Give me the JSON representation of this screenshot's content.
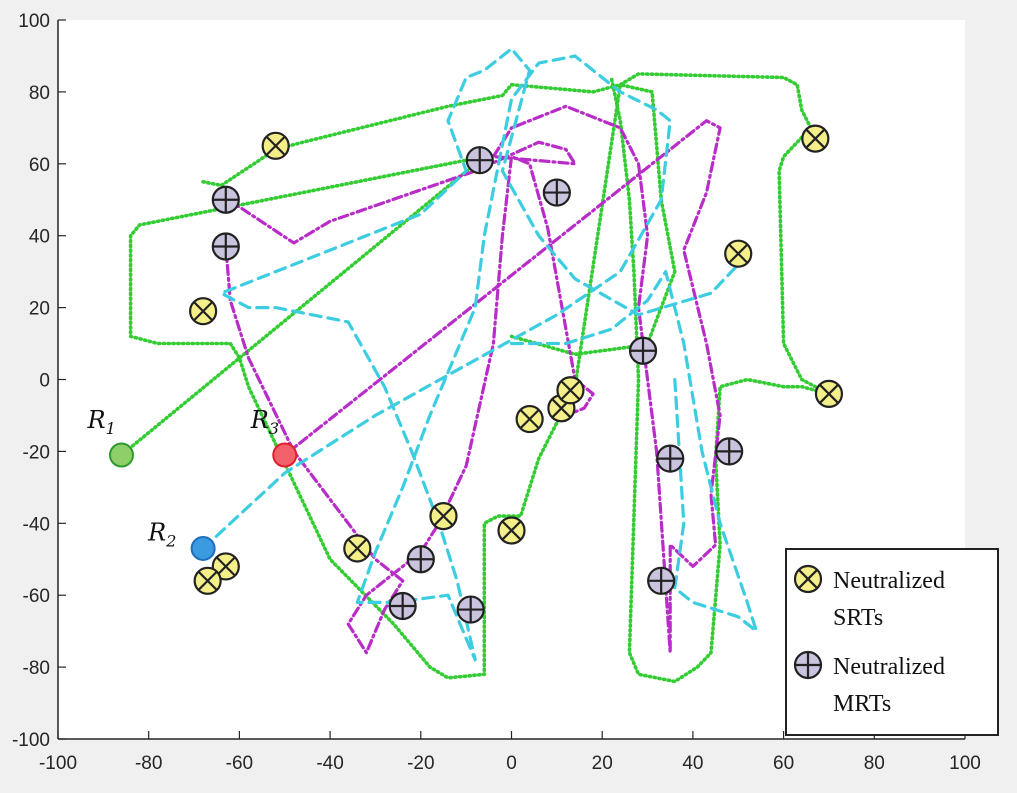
{
  "chart_data": {
    "type": "line",
    "title": "",
    "xlabel": "",
    "ylabel": "",
    "xlim": [
      -100,
      100
    ],
    "ylim": [
      -100,
      100
    ],
    "xticks": [
      -100,
      -80,
      -60,
      -40,
      -20,
      0,
      20,
      40,
      60,
      80,
      100
    ],
    "yticks": [
      -100,
      -80,
      -60,
      -40,
      -20,
      0,
      20,
      40,
      60,
      80,
      100
    ],
    "grid": false,
    "legend_placement": "bottom-right",
    "colors": {
      "green": "#33cc33",
      "magenta": "#b82cc8",
      "cyan": "#3ccde0",
      "srt_fill": "#f5ef8a",
      "mrt_fill": "#c9c3dd",
      "r1": "#8fcf6a",
      "r2": "#3a9be0",
      "r3": "#f2606a"
    },
    "robots": [
      {
        "label": "R",
        "sub": "1",
        "x": -86,
        "y": -21,
        "color": "r1"
      },
      {
        "label": "R",
        "sub": "2",
        "x": -68,
        "y": -47,
        "color": "r2"
      },
      {
        "label": "R",
        "sub": "3",
        "x": -50,
        "y": -21,
        "color": "r3"
      }
    ],
    "series": [
      {
        "color": "green",
        "style": "dotted",
        "points": [
          [
            -86,
            -21
          ],
          [
            -6,
            62
          ],
          [
            -82,
            43
          ],
          [
            -84,
            40
          ],
          [
            -84,
            12
          ],
          [
            -78,
            10
          ],
          [
            -62,
            10
          ],
          [
            -60,
            6
          ],
          [
            -58,
            -2
          ],
          [
            -40,
            -50
          ],
          [
            -26,
            -68
          ],
          [
            -18,
            -80
          ],
          [
            -14,
            -83
          ],
          [
            -6,
            -82
          ],
          [
            -6,
            -40
          ],
          [
            -3,
            -38
          ],
          [
            2,
            -38
          ],
          [
            6,
            -22
          ],
          [
            14,
            -2
          ],
          [
            24,
            82
          ],
          [
            31,
            80
          ],
          [
            33,
            50
          ],
          [
            36,
            30
          ],
          [
            30,
            10
          ],
          [
            26,
            9
          ],
          [
            14,
            7
          ],
          [
            0,
            12
          ]
        ]
      },
      {
        "color": "green",
        "style": "dotted",
        "points": [
          [
            -68,
            55
          ],
          [
            -64,
            54
          ],
          [
            -52,
            64
          ],
          [
            -46,
            66
          ],
          [
            -14,
            76
          ],
          [
            -2,
            79
          ],
          [
            0,
            82
          ],
          [
            18,
            80
          ],
          [
            24,
            82
          ],
          [
            28,
            85
          ],
          [
            60,
            84
          ],
          [
            63,
            82
          ],
          [
            64,
            75
          ],
          [
            66,
            70
          ],
          [
            60,
            62
          ],
          [
            59,
            58
          ],
          [
            60,
            10
          ],
          [
            64,
            0
          ],
          [
            70,
            -4
          ],
          [
            64,
            -2
          ],
          [
            60,
            -2
          ],
          [
            52,
            0
          ],
          [
            46,
            -2
          ],
          [
            45,
            -22
          ],
          [
            46,
            -46
          ],
          [
            44,
            -76
          ],
          [
            41,
            -80
          ],
          [
            36,
            -84
          ],
          [
            28,
            -82
          ],
          [
            26,
            -76
          ],
          [
            28,
            0
          ],
          [
            27,
            30
          ],
          [
            26,
            50
          ],
          [
            24,
            72
          ],
          [
            22,
            84
          ]
        ]
      },
      {
        "color": "magenta",
        "style": "dashdot",
        "points": [
          [
            -50,
            -21
          ],
          [
            43,
            72
          ],
          [
            46,
            70
          ],
          [
            43,
            52
          ],
          [
            38,
            36
          ],
          [
            43,
            10
          ],
          [
            46,
            -10
          ],
          [
            44,
            -32
          ],
          [
            45,
            -46
          ],
          [
            40,
            -52
          ],
          [
            35,
            -46
          ],
          [
            35,
            -76
          ],
          [
            32,
            -20
          ],
          [
            28,
            20
          ],
          [
            30,
            40
          ],
          [
            28,
            60
          ],
          [
            24,
            70
          ],
          [
            12,
            76
          ],
          [
            0,
            70
          ],
          [
            -4,
            62
          ],
          [
            14,
            60
          ],
          [
            12,
            64
          ],
          [
            6,
            66
          ],
          [
            -8,
            58
          ],
          [
            -40,
            44
          ],
          [
            -48,
            38
          ],
          [
            -60,
            48
          ],
          [
            -64,
            50
          ]
        ]
      },
      {
        "color": "magenta",
        "style": "dashdot",
        "points": [
          [
            -63,
            37
          ],
          [
            -62,
            22
          ],
          [
            -58,
            6
          ],
          [
            -48,
            -20
          ],
          [
            -30,
            -50
          ],
          [
            -24,
            -56
          ],
          [
            -28,
            -64
          ],
          [
            -32,
            -76
          ],
          [
            -36,
            -68
          ],
          [
            -32,
            -60
          ],
          [
            -26,
            -54
          ],
          [
            -20,
            -48
          ],
          [
            -16,
            -40
          ],
          [
            -10,
            -24
          ],
          [
            -4,
            10
          ],
          [
            -2,
            40
          ],
          [
            0,
            62
          ],
          [
            4,
            60
          ],
          [
            8,
            42
          ],
          [
            14,
            0
          ],
          [
            18,
            -4
          ],
          [
            16,
            -8
          ],
          [
            12,
            -10
          ]
        ]
      },
      {
        "color": "cyan",
        "style": "dashed",
        "points": [
          [
            -68,
            -47
          ],
          [
            -50,
            -26
          ],
          [
            -30,
            -10
          ],
          [
            10,
            18
          ],
          [
            24,
            30
          ],
          [
            33,
            50
          ],
          [
            35,
            72
          ],
          [
            32,
            75
          ],
          [
            24,
            80
          ],
          [
            14,
            90
          ],
          [
            6,
            88
          ],
          [
            0,
            78
          ],
          [
            -6,
            40
          ],
          [
            -8,
            20
          ],
          [
            -18,
            -10
          ],
          [
            -24,
            -30
          ],
          [
            -30,
            -48
          ],
          [
            -34,
            -62
          ],
          [
            -26,
            -62
          ],
          [
            -14,
            -60
          ],
          [
            -8,
            -78
          ],
          [
            -12,
            -56
          ],
          [
            -16,
            -40
          ],
          [
            -22,
            -20
          ],
          [
            -28,
            -2
          ],
          [
            -36,
            16
          ],
          [
            -52,
            20
          ],
          [
            -58,
            20
          ],
          [
            -64,
            24
          ],
          [
            -48,
            32
          ],
          [
            -20,
            46
          ],
          [
            -10,
            58
          ],
          [
            -14,
            72
          ],
          [
            -10,
            84
          ],
          [
            -6,
            86
          ],
          [
            0,
            92
          ],
          [
            4,
            86
          ],
          [
            -2,
            58
          ],
          [
            6,
            40
          ],
          [
            14,
            28
          ],
          [
            28,
            18
          ],
          [
            44,
            24
          ],
          [
            50,
            32
          ]
        ]
      },
      {
        "color": "cyan",
        "style": "dashed",
        "points": [
          [
            0,
            10
          ],
          [
            12,
            10
          ],
          [
            22,
            14
          ],
          [
            30,
            22
          ],
          [
            34,
            30
          ],
          [
            38,
            10
          ],
          [
            42,
            -20
          ],
          [
            46,
            -40
          ],
          [
            52,
            -62
          ],
          [
            54,
            -70
          ],
          [
            50,
            -66
          ],
          [
            40,
            -62
          ],
          [
            36,
            -58
          ],
          [
            38,
            -40
          ],
          [
            36,
            0
          ]
        ]
      }
    ],
    "srts": [
      [
        -52,
        65
      ],
      [
        -68,
        19
      ],
      [
        -63,
        -52
      ],
      [
        -67,
        -56
      ],
      [
        -34,
        -47
      ],
      [
        -15,
        -38
      ],
      [
        0,
        -42
      ],
      [
        4,
        -11
      ],
      [
        11,
        -8
      ],
      [
        13,
        -3
      ],
      [
        50,
        35
      ],
      [
        67,
        67
      ],
      [
        70,
        -4
      ]
    ],
    "mrts": [
      [
        -63,
        50
      ],
      [
        -63,
        37
      ],
      [
        -7,
        61
      ],
      [
        10,
        52
      ],
      [
        29,
        8
      ],
      [
        35,
        -22
      ],
      [
        48,
        -20
      ],
      [
        33,
        -56
      ],
      [
        -20,
        -50
      ],
      [
        -24,
        -63
      ],
      [
        -9,
        -64
      ]
    ],
    "legend": [
      {
        "marker": "srt",
        "line1": "Neutralized",
        "line2": "SRTs"
      },
      {
        "marker": "mrt",
        "line1": "Neutralized",
        "line2": "MRTs"
      }
    ]
  }
}
